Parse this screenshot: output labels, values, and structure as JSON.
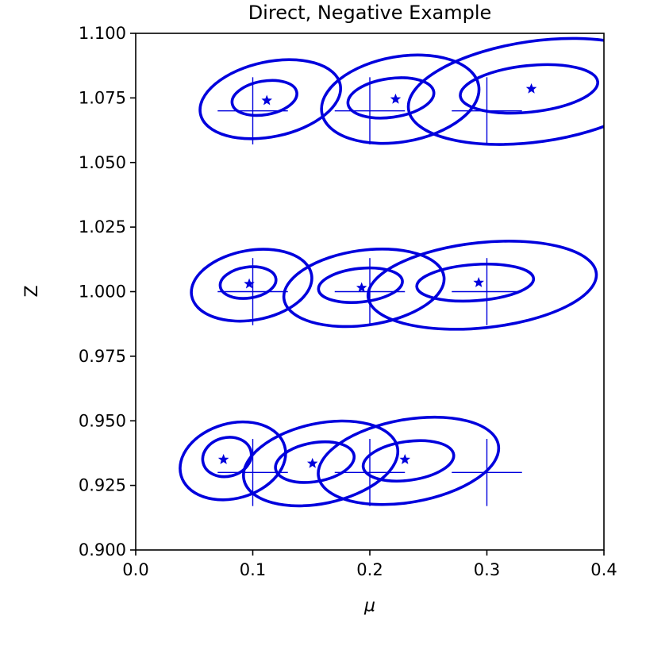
{
  "chart_data": {
    "type": "scatter",
    "title": "Direct, Negative Example",
    "xlabel": "μ",
    "ylabel": "Z",
    "xlim": [
      0.0,
      0.4
    ],
    "ylim": [
      0.9,
      1.1
    ],
    "grid": false,
    "legend": "none",
    "x_ticks": [
      "0.0",
      "0.1",
      "0.2",
      "0.3",
      "0.4"
    ],
    "x_tick_values": [
      0.0,
      0.1,
      0.2,
      0.3,
      0.4
    ],
    "y_ticks": [
      "0.900",
      "0.925",
      "0.950",
      "0.975",
      "1.000",
      "1.025",
      "1.050",
      "1.075",
      "1.100"
    ],
    "y_tick_values": [
      0.9,
      0.925,
      0.95,
      0.975,
      1.0,
      1.025,
      1.05,
      1.075,
      1.1
    ],
    "color": "#0000dd",
    "true_values": [
      {
        "mu": 0.1,
        "z": 1.07
      },
      {
        "mu": 0.2,
        "z": 1.07
      },
      {
        "mu": 0.3,
        "z": 1.07
      },
      {
        "mu": 0.1,
        "z": 1.0
      },
      {
        "mu": 0.2,
        "z": 1.0
      },
      {
        "mu": 0.3,
        "z": 1.0
      },
      {
        "mu": 0.1,
        "z": 0.93
      },
      {
        "mu": 0.2,
        "z": 0.93
      },
      {
        "mu": 0.3,
        "z": 0.93
      }
    ],
    "estimates": [
      {
        "mu": 0.112,
        "z": 1.074
      },
      {
        "mu": 0.222,
        "z": 1.0745
      },
      {
        "mu": 0.338,
        "z": 1.0785
      },
      {
        "mu": 0.097,
        "z": 1.003
      },
      {
        "mu": 0.193,
        "z": 1.0015
      },
      {
        "mu": 0.293,
        "z": 1.0035
      },
      {
        "mu": 0.075,
        "z": 0.935
      },
      {
        "mu": 0.151,
        "z": 0.9335
      },
      {
        "mu": 0.23,
        "z": 0.935
      }
    ],
    "inner_ellipses": [
      {
        "mu": 0.11,
        "z": 1.075,
        "rx": 0.028,
        "rz": 0.0065,
        "angle": -10
      },
      {
        "mu": 0.218,
        "z": 1.075,
        "rx": 0.037,
        "rz": 0.0075,
        "angle": -8
      },
      {
        "mu": 0.336,
        "z": 1.0785,
        "rx": 0.059,
        "rz": 0.009,
        "angle": -6
      },
      {
        "mu": 0.096,
        "z": 1.0035,
        "rx": 0.024,
        "rz": 0.006,
        "angle": -8
      },
      {
        "mu": 0.192,
        "z": 1.0025,
        "rx": 0.036,
        "rz": 0.0065,
        "angle": -6
      },
      {
        "mu": 0.29,
        "z": 1.0035,
        "rx": 0.05,
        "rz": 0.007,
        "angle": -4
      },
      {
        "mu": 0.078,
        "z": 0.936,
        "rx": 0.021,
        "rz": 0.0075,
        "angle": -14
      },
      {
        "mu": 0.153,
        "z": 0.934,
        "rx": 0.034,
        "rz": 0.0075,
        "angle": -10
      },
      {
        "mu": 0.233,
        "z": 0.9345,
        "rx": 0.039,
        "rz": 0.0075,
        "angle": -8
      }
    ],
    "outer_ellipses": [
      {
        "mu": 0.115,
        "z": 1.0745,
        "rx": 0.061,
        "rz": 0.0145,
        "angle": -12
      },
      {
        "mu": 0.226,
        "z": 1.0745,
        "rx": 0.068,
        "rz": 0.0165,
        "angle": -10
      },
      {
        "mu": 0.342,
        "z": 1.0775,
        "rx": 0.11,
        "rz": 0.0195,
        "angle": -8
      },
      {
        "mu": 0.099,
        "z": 1.0025,
        "rx": 0.052,
        "rz": 0.0135,
        "angle": -10
      },
      {
        "mu": 0.195,
        "z": 1.0015,
        "rx": 0.069,
        "rz": 0.0145,
        "angle": -8
      },
      {
        "mu": 0.296,
        "z": 1.0025,
        "rx": 0.098,
        "rz": 0.0165,
        "angle": -6
      },
      {
        "mu": 0.083,
        "z": 0.9345,
        "rx": 0.046,
        "rz": 0.0145,
        "angle": -16
      },
      {
        "mu": 0.158,
        "z": 0.9335,
        "rx": 0.067,
        "rz": 0.0155,
        "angle": -12
      },
      {
        "mu": 0.233,
        "z": 0.9345,
        "rx": 0.078,
        "rz": 0.016,
        "angle": -10
      }
    ],
    "crosshair_half_width_mu": 0.03,
    "crosshair_half_height_z": 0.013
  }
}
